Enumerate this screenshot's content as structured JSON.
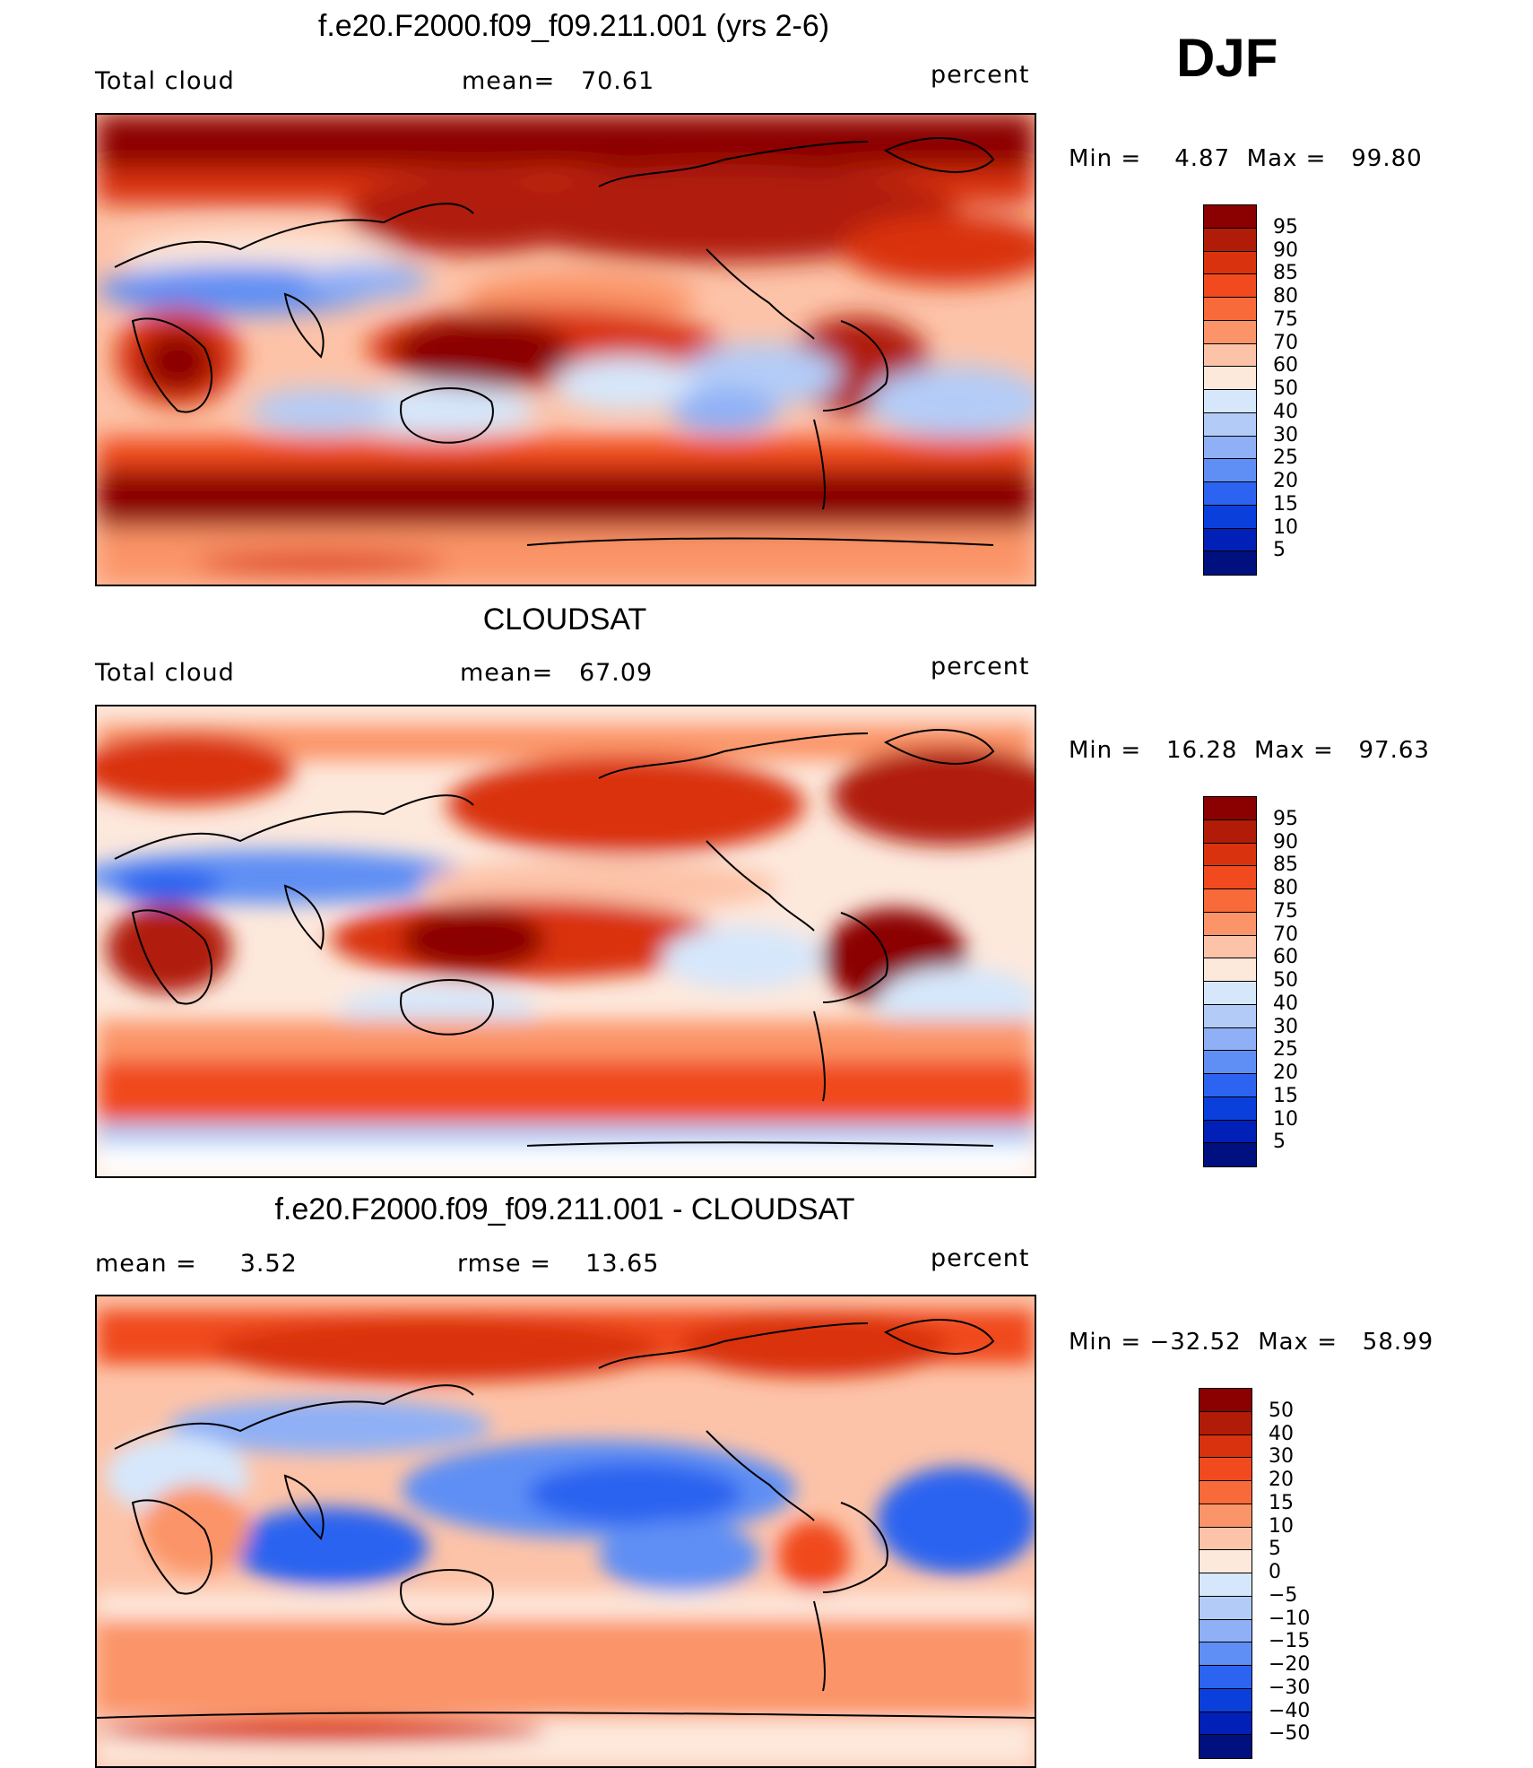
{
  "season": "DJF",
  "panels": [
    {
      "id": "model",
      "title": "f.e20.F2000.f09_f09.211.001 (yrs 2-6)",
      "left_label": "Total cloud",
      "center_label": "mean=   70.61",
      "right_label": "percent",
      "minmax": "Min =    4.87  Max =   99.80",
      "colorbar": {
        "labels": [
          "95",
          "90",
          "85",
          "80",
          "75",
          "70",
          "60",
          "50",
          "40",
          "30",
          "25",
          "20",
          "15",
          "10",
          "5"
        ],
        "colors": [
          "#8b0000",
          "#b01c08",
          "#d9320e",
          "#f04a1e",
          "#f86a3a",
          "#fb9468",
          "#fdc3a8",
          "#fde8dc",
          "#d6e7fb",
          "#b3ccf7",
          "#8fb0f6",
          "#5f8ff4",
          "#2c63f0",
          "#0b3fdc",
          "#0020b8",
          "#00107e"
        ]
      },
      "heat_regions": [
        "north-polar-high",
        "tropical-pacific-warm-pool",
        "amazon",
        "central-africa",
        "southern-ocean-storm-track"
      ],
      "cool_regions": [
        "sahara-arabia",
        "east-pacific-subtropics",
        "australia-interior",
        "south-atlantic-subtropics"
      ]
    },
    {
      "id": "obs",
      "title": "CLOUDSAT",
      "left_label": "Total cloud",
      "center_label": "mean=   67.09",
      "right_label": "percent",
      "minmax": "Min =   16.28  Max =   97.63",
      "colorbar": {
        "labels": [
          "95",
          "90",
          "85",
          "80",
          "75",
          "70",
          "60",
          "50",
          "40",
          "30",
          "25",
          "20",
          "15",
          "10",
          "5"
        ],
        "colors": [
          "#8b0000",
          "#b01c08",
          "#d9320e",
          "#f04a1e",
          "#f86a3a",
          "#fb9468",
          "#fdc3a8",
          "#fde8dc",
          "#d6e7fb",
          "#b3ccf7",
          "#8fb0f6",
          "#5f8ff4",
          "#2c63f0",
          "#0b3fdc",
          "#0020b8",
          "#00107e"
        ]
      }
    },
    {
      "id": "diff",
      "title": "f.e20.F2000.f09_f09.211.001 - CLOUDSAT",
      "left_label": "mean =     3.52",
      "center_label": "rmse =    13.65",
      "right_label": "percent",
      "minmax": "Min = −32.52  Max =   58.99",
      "colorbar": {
        "labels": [
          "50",
          "40",
          "30",
          "20",
          "15",
          "10",
          "5",
          "0",
          "−5",
          "−10",
          "−15",
          "−20",
          "−30",
          "−40",
          "−50"
        ],
        "colors": [
          "#8b0000",
          "#b01c08",
          "#d9320e",
          "#f04a1e",
          "#f86a3a",
          "#fb9468",
          "#fdc3a8",
          "#fde8dc",
          "#d6e7fb",
          "#b3ccf7",
          "#8fb0f6",
          "#5f8ff4",
          "#2c63f0",
          "#0b3fdc",
          "#0020b8",
          "#00107e"
        ]
      }
    }
  ]
}
